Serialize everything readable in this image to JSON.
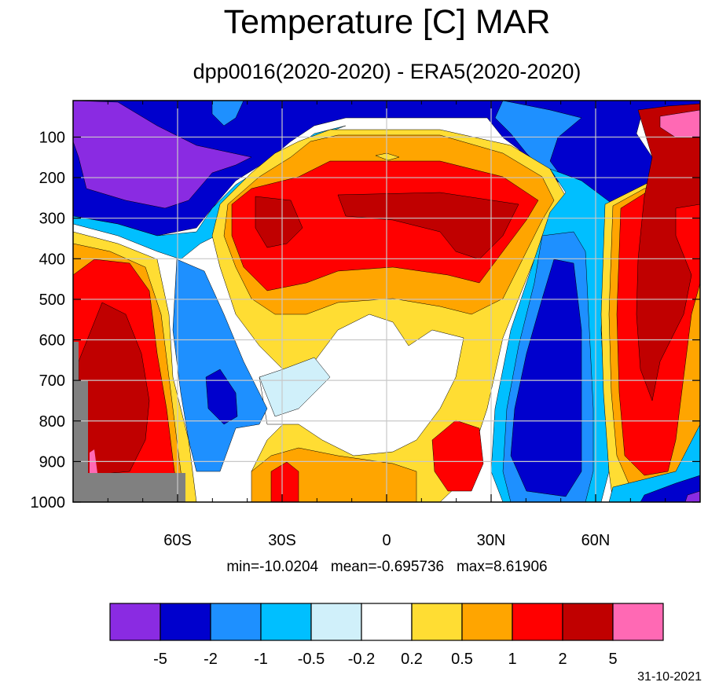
{
  "header": {
    "title": "Temperature [C] MAR",
    "subtitle": "dpp0016(2020-2020) - ERA5(2020-2020)"
  },
  "stats": {
    "text": "min=-10.0204   mean=-0.695736   max=8.61906"
  },
  "footer": {
    "date": "31-10-2021"
  },
  "chart_data": {
    "type": "heatmap",
    "title": "Temperature [C] MAR",
    "subtitle": "dpp0016(2020-2020) - ERA5(2020-2020)",
    "xlabel": "",
    "ylabel": "",
    "x_range": [
      -90,
      90
    ],
    "y_range": [
      1000,
      10
    ],
    "y_inverted": true,
    "x_ticks": [
      {
        "value": -60,
        "label": "60S"
      },
      {
        "value": -30,
        "label": "30S"
      },
      {
        "value": 0,
        "label": "0"
      },
      {
        "value": 30,
        "label": "30N"
      },
      {
        "value": 60,
        "label": "60N"
      }
    ],
    "y_ticks": [
      {
        "value": 100,
        "label": "100"
      },
      {
        "value": 200,
        "label": "200"
      },
      {
        "value": 300,
        "label": "300"
      },
      {
        "value": 400,
        "label": "400"
      },
      {
        "value": 500,
        "label": "500"
      },
      {
        "value": 600,
        "label": "600"
      },
      {
        "value": 700,
        "label": "700"
      },
      {
        "value": 800,
        "label": "800"
      },
      {
        "value": 900,
        "label": "900"
      },
      {
        "value": 1000,
        "label": "1000"
      }
    ],
    "grid": true,
    "min": -10.0204,
    "mean": -0.695736,
    "max": 8.61906,
    "colorbar": {
      "position": "bottom",
      "colors": [
        "#8a2be2",
        "#0000cd",
        "#1e90ff",
        "#00bfff",
        "#d0f0fa",
        "#ffffff",
        "#ffdd33",
        "#ffa500",
        "#ff0000",
        "#c00000",
        "#ff69b4"
      ],
      "levels": [
        {
          "label": "-5"
        },
        {
          "label": "-2"
        },
        {
          "label": "-1"
        },
        {
          "label": "-0.5"
        },
        {
          "label": "-0.2"
        },
        {
          "label": "0.2"
        },
        {
          "label": "0.5"
        },
        {
          "label": "1"
        },
        {
          "label": "2"
        },
        {
          "label": "5"
        }
      ]
    },
    "missing_color": "#808080",
    "regions": [
      {
        "name": "strat-purple-south",
        "level": "below -5"
      },
      {
        "name": "strat-blue-band",
        "level": "-5 to -2"
      },
      {
        "name": "tropical-upper-warm",
        "level": "1 to 2"
      },
      {
        "name": "tropical-upper-warmer",
        "level": "2 to 5"
      },
      {
        "name": "arctic-pink",
        "level": "above 5"
      },
      {
        "name": "antarctic-surface-warm",
        "level": "2 to 5"
      },
      {
        "name": "nh-midlat-cold-column",
        "level": "-5 to -2"
      },
      {
        "name": "nh-polar-warm-column",
        "level": "2 to 5"
      }
    ]
  }
}
